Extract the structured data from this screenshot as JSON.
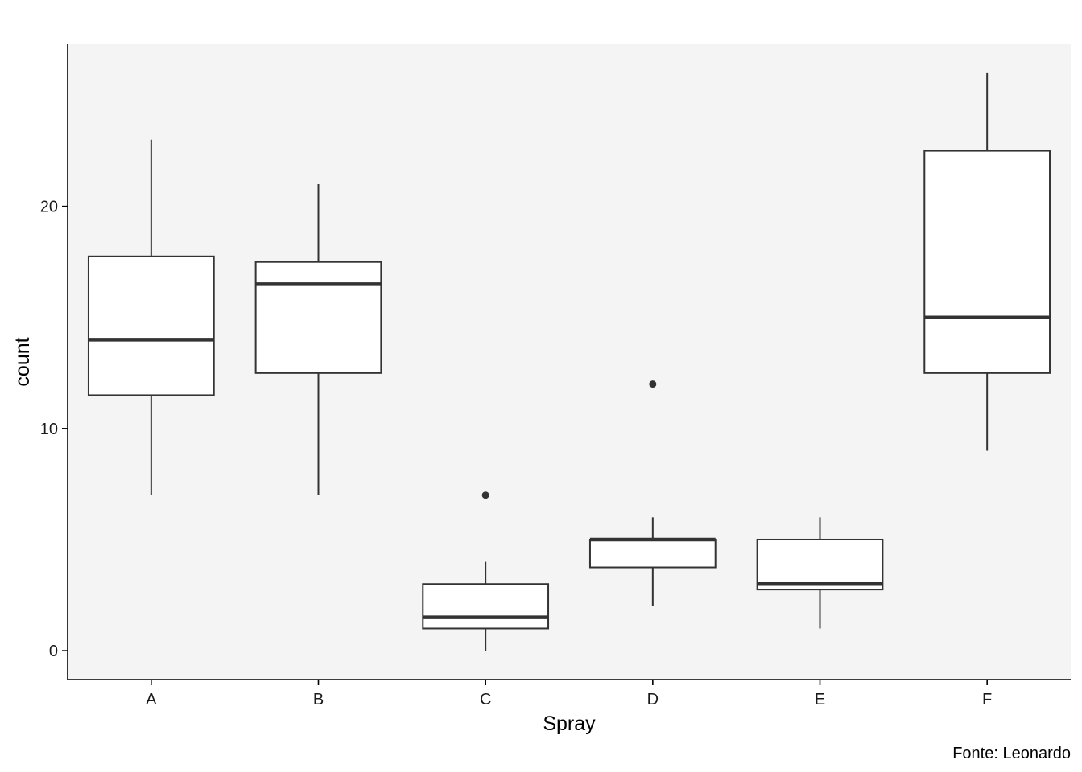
{
  "chart_data": {
    "type": "boxplot",
    "title": "",
    "xlabel": "Spray",
    "ylabel": "count",
    "caption": "Fonte: Leonardo",
    "categories": [
      "A",
      "B",
      "C",
      "D",
      "E",
      "F"
    ],
    "boxes": [
      {
        "category": "A",
        "whisker_low": 7,
        "q1": 11.5,
        "median": 14,
        "q3": 17.75,
        "whisker_high": 23,
        "outliers": []
      },
      {
        "category": "B",
        "whisker_low": 7,
        "q1": 12.5,
        "median": 16.5,
        "q3": 17.5,
        "whisker_high": 21,
        "outliers": []
      },
      {
        "category": "C",
        "whisker_low": 0,
        "q1": 1,
        "median": 1.5,
        "q3": 3,
        "whisker_high": 4,
        "outliers": [
          7
        ]
      },
      {
        "category": "D",
        "whisker_low": 2,
        "q1": 3.75,
        "median": 5,
        "q3": 5,
        "whisker_high": 6,
        "outliers": [
          12
        ]
      },
      {
        "category": "E",
        "whisker_low": 1,
        "q1": 2.75,
        "median": 3,
        "q3": 5,
        "whisker_high": 6,
        "outliers": []
      },
      {
        "category": "F",
        "whisker_low": 9,
        "q1": 12.5,
        "median": 15,
        "q3": 22.5,
        "whisker_high": 26,
        "outliers": []
      }
    ],
    "yticks": [
      0,
      10,
      20
    ],
    "ylim": [
      -1.3,
      27.3
    ],
    "grid": false,
    "colors": {
      "panel_background": "#f4f4f4",
      "box_fill": "#ffffff",
      "box_line": "#333333",
      "axis_line": "#000000"
    }
  }
}
